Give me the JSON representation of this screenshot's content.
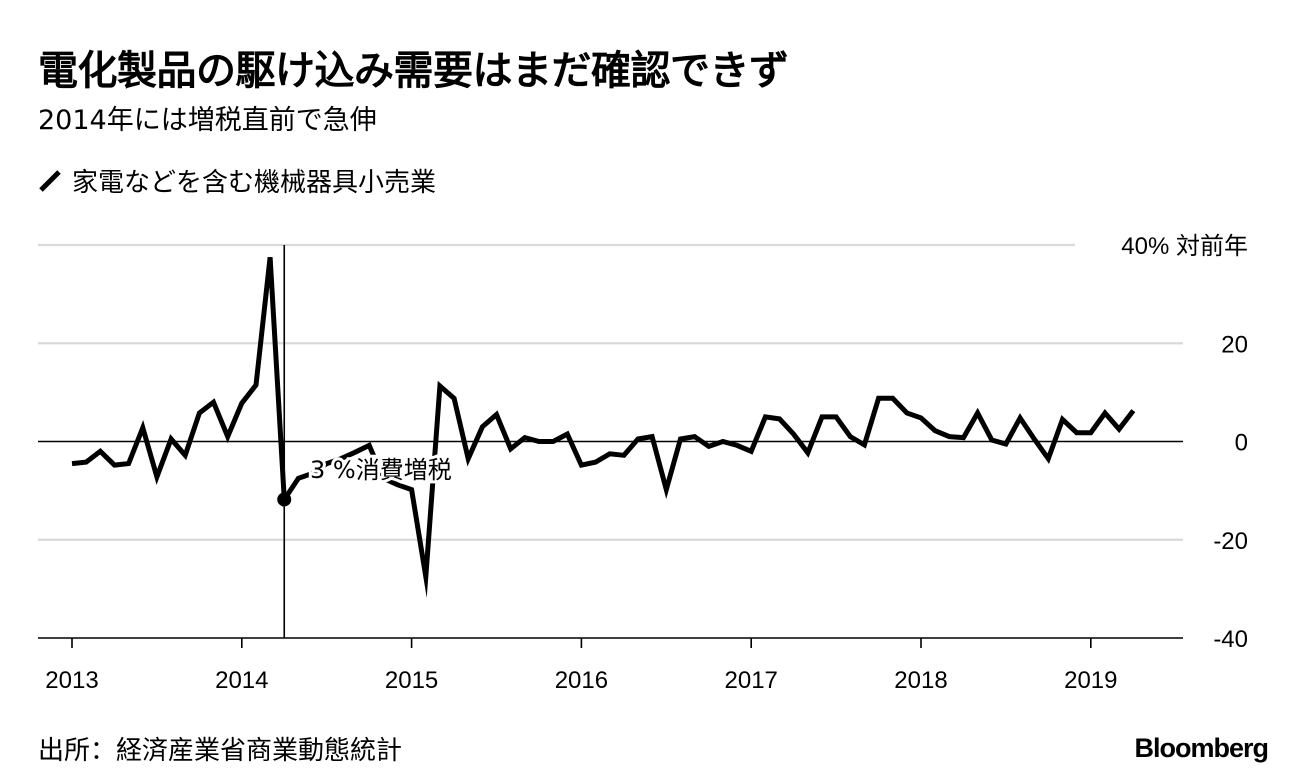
{
  "header": {
    "title": "電化製品の駆け込み需要はまだ確認できず",
    "subtitle": "2014年には増税直前で急伸"
  },
  "footer": {
    "source": "出所：経済産業省商業動態統計",
    "brand": "Bloomberg"
  },
  "colors": {
    "line": "#000000",
    "grid": "#d9d9d9",
    "axis": "#000000"
  },
  "chart_data": {
    "type": "line",
    "title": "電化製品の駆け込み需要はまだ確認できず",
    "subtitle": "2014年には増税直前で急伸",
    "ylabel": "40% 対前年",
    "ylim": [
      -40,
      40
    ],
    "yticks": [
      {
        "value": 40,
        "label": "40% 対前年"
      },
      {
        "value": 20,
        "label": "20"
      },
      {
        "value": 0,
        "label": "0"
      },
      {
        "value": -20,
        "label": "-20"
      },
      {
        "value": -40,
        "label": "-40"
      }
    ],
    "xticks": [
      "2013",
      "2014",
      "2015",
      "2016",
      "2017",
      "2018",
      "2019"
    ],
    "x_start": "2013-01",
    "grid": true,
    "legend_position": "top-left",
    "series": [
      {
        "name": "家電などを含む機械器具小売業",
        "values": [
          -4.5,
          -4.2,
          -2,
          -4.8,
          -4.5,
          2.8,
          -7.2,
          0.5,
          -2.8,
          5.8,
          8,
          1,
          7.8,
          11.5,
          37.5,
          -11.8,
          -7.5,
          -6.5,
          -4.5,
          -3.5,
          -2.2,
          -0.8,
          -7.5,
          -8.8,
          -9.8,
          -27.5,
          11.3,
          8.8,
          -3.5,
          3,
          5.5,
          -1.5,
          0.8,
          0,
          0,
          1.5,
          -4.8,
          -4.2,
          -2.5,
          -2.8,
          0.5,
          1,
          -9.8,
          0.5,
          1,
          -1,
          0,
          -0.8,
          -2,
          5,
          4.6,
          1.5,
          -2.3,
          5,
          5,
          1,
          -0.7,
          8.8,
          8.8,
          5.8,
          4.8,
          2.2,
          1,
          0.8,
          5.8,
          0.3,
          -0.5,
          4.8,
          0.5,
          -3.5,
          4.5,
          1.8,
          1.8,
          5.8,
          2.5,
          6.3
        ]
      }
    ],
    "annotation": {
      "label": "3 %消費増税",
      "x": "2014-04",
      "value": -11.8
    }
  }
}
